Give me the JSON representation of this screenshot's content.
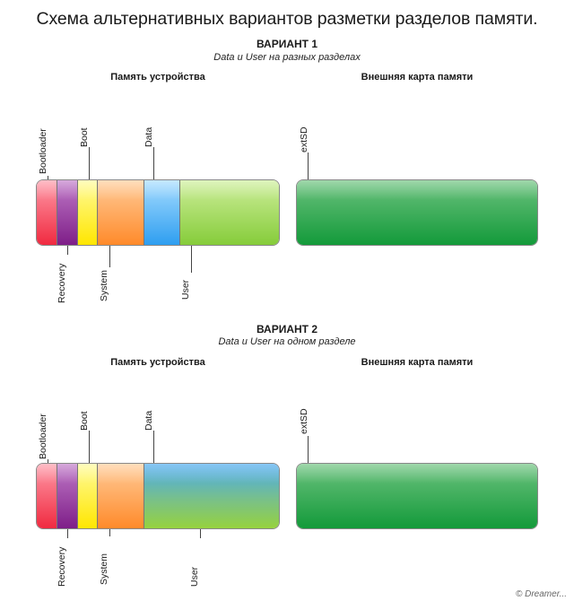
{
  "title": "Схема альтернативных вариантов разметки разделов памяти.",
  "variant1": {
    "title": "ВАРИАНТ 1",
    "subtitle": "Data и User на разных разделах",
    "device_header": "Память устройства",
    "card_header": "Внешняя карта памяти",
    "top_labels": [
      "Bootloader",
      "Boot",
      "Data"
    ],
    "bottom_labels": [
      "Recovery",
      "System",
      "User"
    ],
    "card_label": "extSD"
  },
  "variant2": {
    "title": "ВАРИАНТ 2",
    "subtitle": "Data и User на одном разделе",
    "device_header": "Память устройства",
    "card_header": "Внешняя карта памяти",
    "top_labels": [
      "Bootloader",
      "Boot",
      "Data"
    ],
    "bottom_labels": [
      "Recovery",
      "System",
      "User"
    ],
    "card_label": "extSD"
  },
  "footer": "© Dreamer...",
  "colors": {
    "bootloader": "#f02a40",
    "recovery": "#7e1e88",
    "boot": "#ffe600",
    "system": "#ff8a2a",
    "data": "#2e9ef0",
    "user": "#86cc3a",
    "extsd": "#139a3a"
  }
}
